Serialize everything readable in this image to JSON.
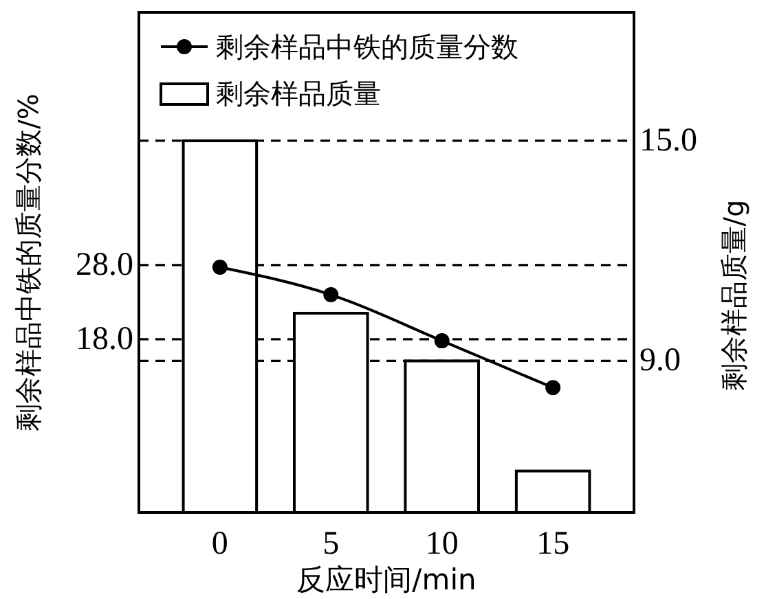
{
  "chart_data": {
    "type": "bar",
    "xlabel": "反应时间/min",
    "ylabel": "剩余样品中铁的质量分数/%",
    "y2label": "剩余样品质量/g",
    "categories": [
      "0",
      "5",
      "10",
      "15"
    ],
    "series": [
      {
        "name": "剩余样品中铁的质量分数",
        "type": "line",
        "color": "#000000",
        "values": [
          27.7,
          24.0,
          17.8,
          11.5
        ],
        "marker": "circle"
      },
      {
        "name": "剩余样品质量",
        "axis": "y2",
        "color": "#ffffff",
        "values": [
          15.0,
          10.3,
          9.0,
          6.0
        ]
      }
    ],
    "ylim": [
      -5.3,
      62
    ],
    "yticks": [
      {
        "value": 18,
        "label": "18.0"
      },
      {
        "value": 28,
        "label": "28.0"
      }
    ],
    "y2lim": [
      4.87,
      18.5
    ],
    "y2ticks": [
      {
        "value": 9,
        "label": "9.0"
      },
      {
        "value": 15,
        "label": "15.0"
      }
    ],
    "legend": "top left",
    "grid": true
  }
}
